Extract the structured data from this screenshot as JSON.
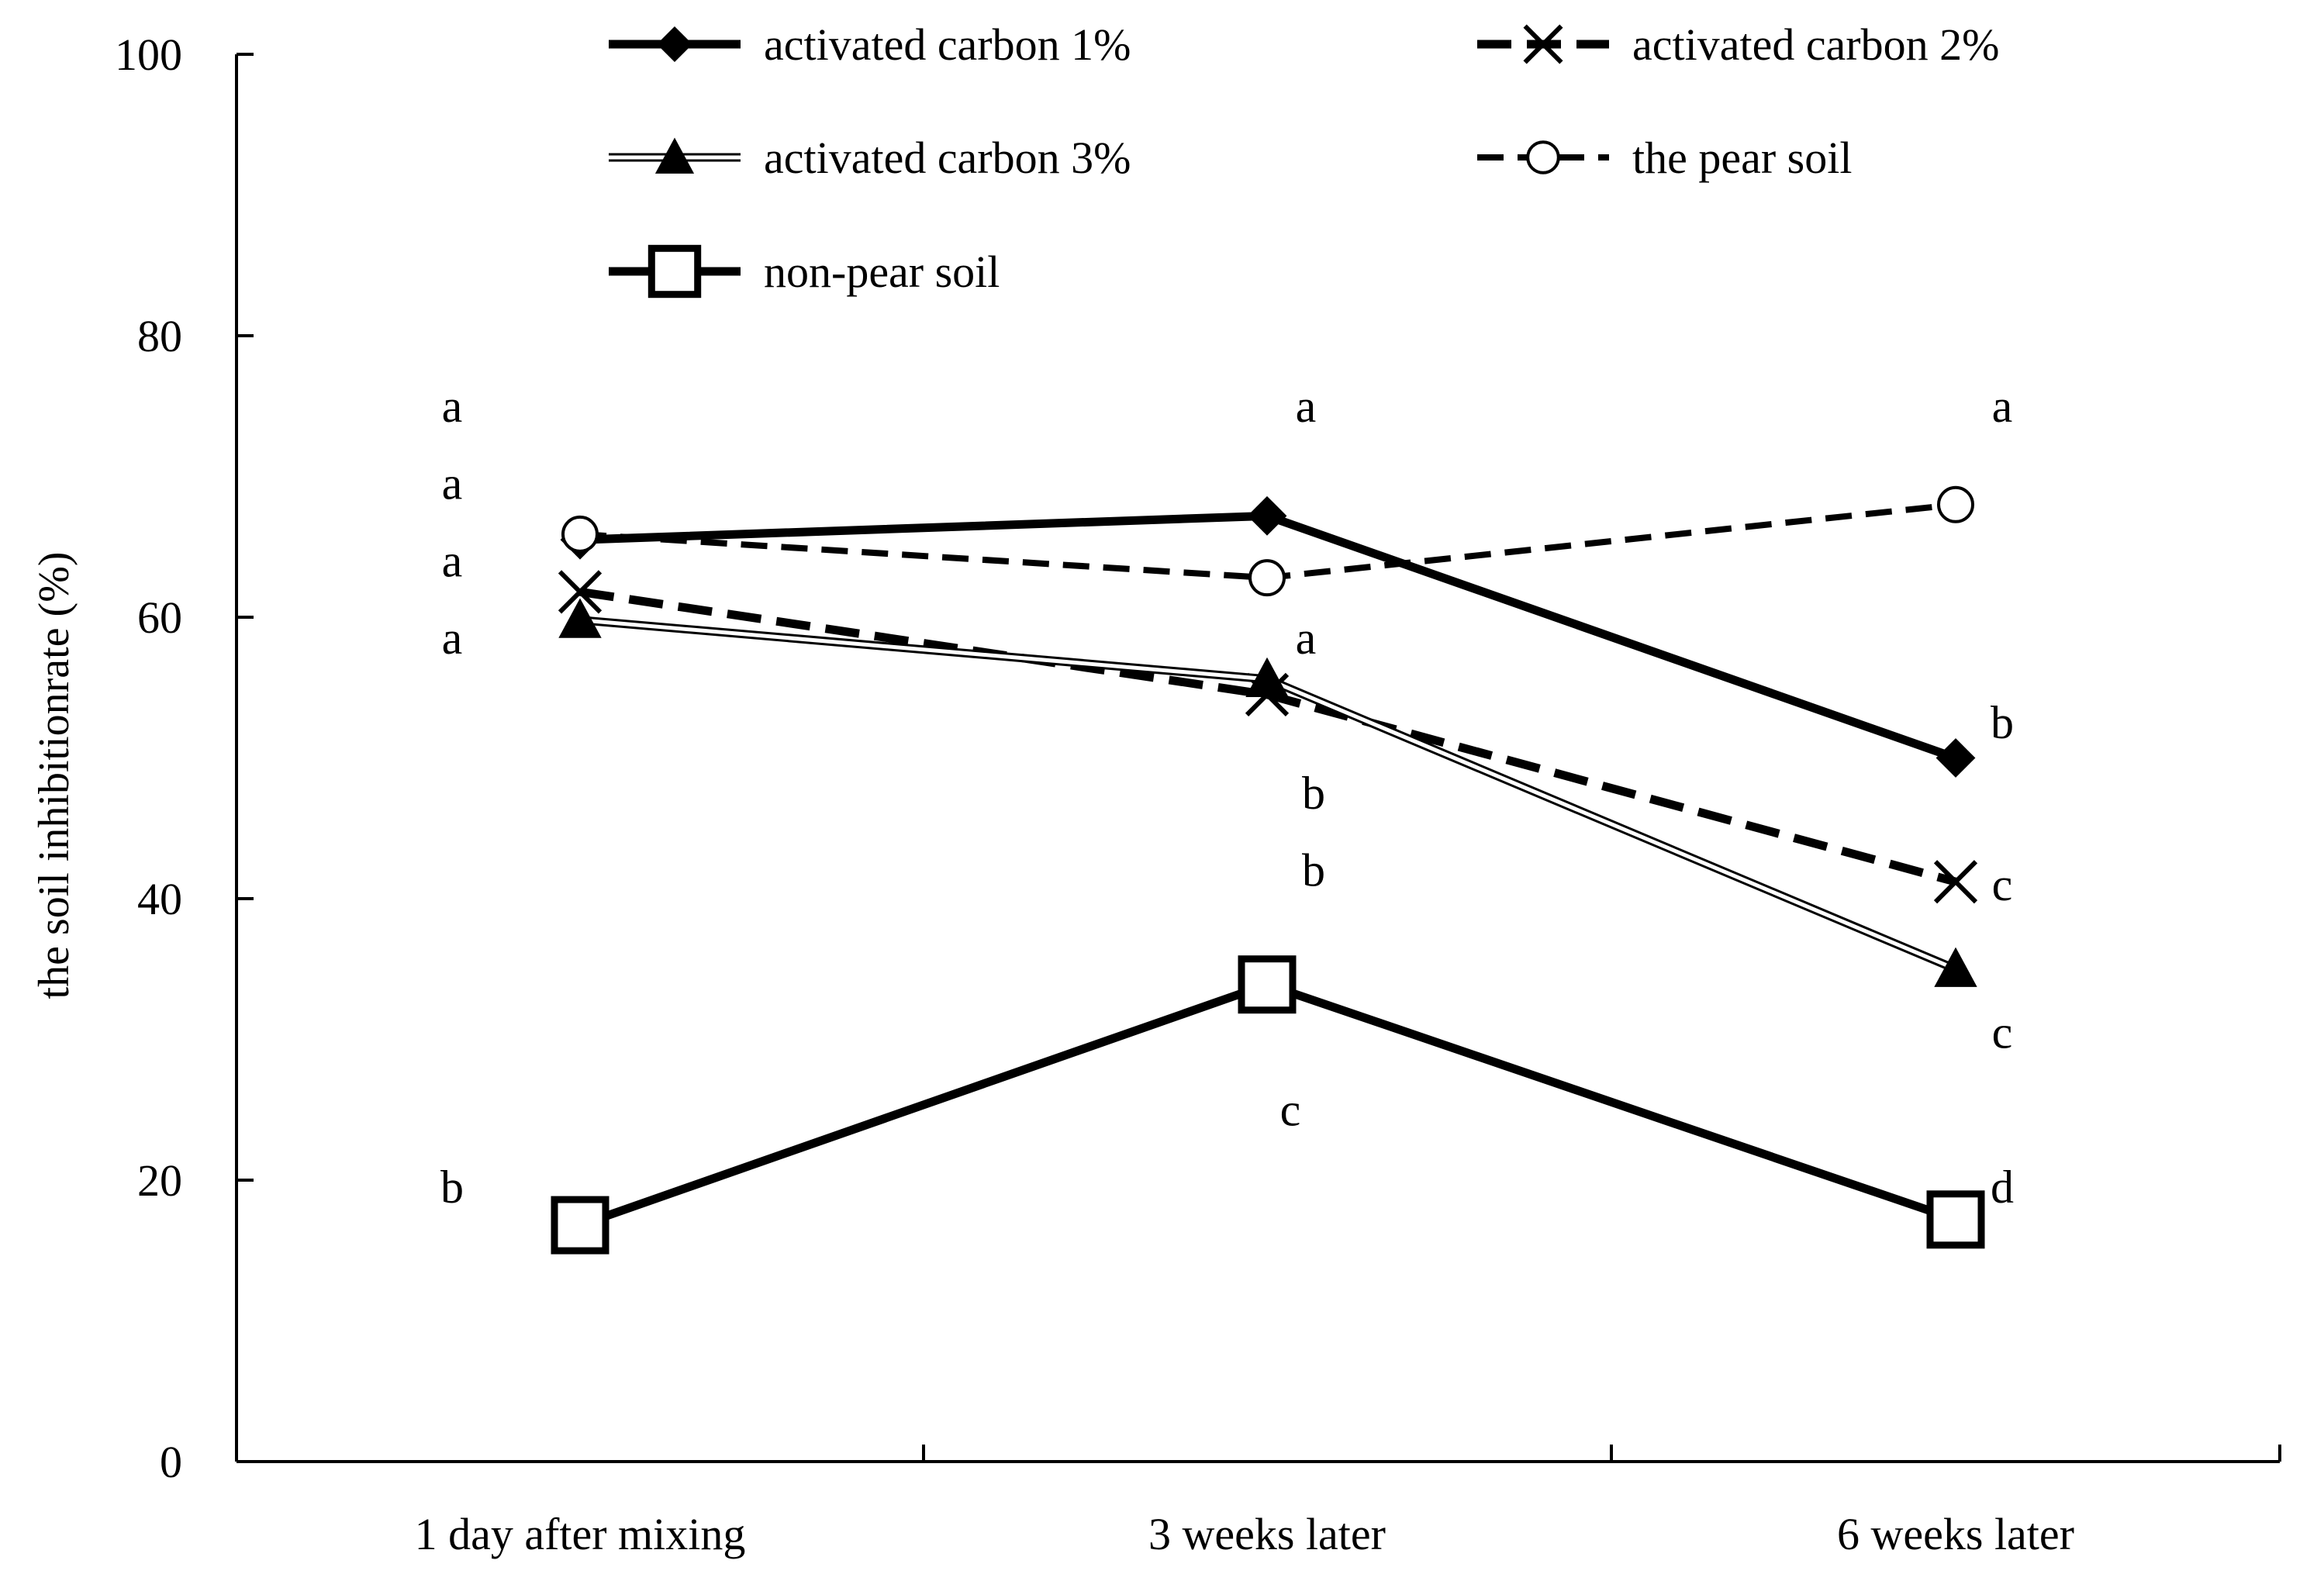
{
  "chart_data": {
    "type": "line",
    "title": "",
    "xlabel": "",
    "ylabel": "the soil inhibitionrate (%)",
    "ylim": [
      0,
      100
    ],
    "yticks": [
      0,
      20,
      40,
      60,
      80,
      100
    ],
    "categories": [
      "1 day after mixing",
      "3 weeks later",
      "6 weeks later"
    ],
    "grid": false,
    "legend_position": "top",
    "series": [
      {
        "name": "activated carbon 1%",
        "values": [
          65.5,
          67.2,
          50.0
        ],
        "style": "solid-thick",
        "marker": "diamond-filled",
        "color": "#000000"
      },
      {
        "name": "activated carbon 2%",
        "values": [
          61.8,
          54.5,
          41.2
        ],
        "style": "dashed-thick",
        "marker": "x",
        "color": "#000000"
      },
      {
        "name": "activated carbon 3%",
        "values": [
          59.8,
          55.6,
          35.0
        ],
        "style": "double-thin",
        "marker": "triangle-filled",
        "color": "#000000"
      },
      {
        "name": "the pear soil",
        "values": [
          65.9,
          62.8,
          68.0
        ],
        "style": "dashed-medium",
        "marker": "circle-open",
        "color": "#000000"
      },
      {
        "name": "non-pear soil",
        "values": [
          16.8,
          33.9,
          17.2
        ],
        "style": "solid-thick",
        "marker": "square-open",
        "color": "#000000"
      }
    ],
    "significance_letters": [
      {
        "category": 0,
        "labels": [
          "a",
          "a",
          "a",
          "a",
          "b"
        ],
        "y": [
          75,
          69.5,
          64,
          58.5,
          19.5
        ],
        "offset": -1
      },
      {
        "category": 1,
        "labels": [
          "a",
          "a",
          "b",
          "b",
          "c"
        ],
        "y": [
          75,
          58.5,
          47.5,
          42,
          25
        ],
        "offset": 1
      },
      {
        "category": 2,
        "labels": [
          "a",
          "b",
          "c",
          "c",
          "d"
        ],
        "y": [
          75,
          52.5,
          41,
          30.5,
          19.5
        ],
        "offset": 1
      }
    ]
  }
}
